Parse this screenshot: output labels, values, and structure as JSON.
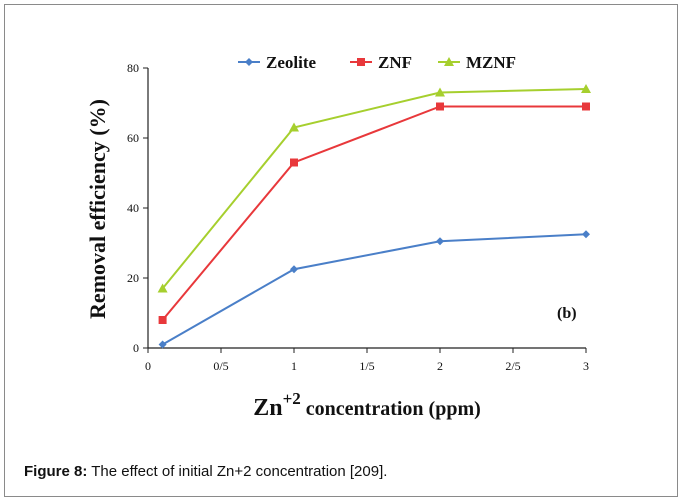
{
  "caption": {
    "label": "Figure 8:",
    "text": "The effect of initial Zn+2 concentration [209]."
  },
  "chart_data": {
    "type": "line",
    "title": "",
    "xlabel_main": "Zn",
    "xlabel_sup": "+2",
    "xlabel_rest": " concentration (ppm)",
    "ylabel": "Removal efficiency (%)",
    "xlim": [
      0,
      3
    ],
    "ylim": [
      0,
      80
    ],
    "x_ticks": [
      {
        "v": 0,
        "label": "0"
      },
      {
        "v": 0.5,
        "label": "0/5"
      },
      {
        "v": 1,
        "label": "1"
      },
      {
        "v": 1.5,
        "label": "1/5"
      },
      {
        "v": 2,
        "label": "2"
      },
      {
        "v": 2.5,
        "label": "2/5"
      },
      {
        "v": 3,
        "label": "3"
      }
    ],
    "y_ticks": [
      {
        "v": 0,
        "label": "0"
      },
      {
        "v": 20,
        "label": "20"
      },
      {
        "v": 40,
        "label": "40"
      },
      {
        "v": 60,
        "label": "60"
      },
      {
        "v": 80,
        "label": "80"
      }
    ],
    "annotation": "(b)",
    "grid": false,
    "legend_position": "top",
    "series": [
      {
        "name": "Zeolite",
        "color": "#4a7fc8",
        "marker": "diamond",
        "x": [
          0.1,
          1,
          2,
          3
        ],
        "y": [
          1,
          22.5,
          30.5,
          32.5
        ]
      },
      {
        "name": "ZNF",
        "color": "#e8383b",
        "marker": "square",
        "x": [
          0.1,
          1,
          2,
          3
        ],
        "y": [
          8,
          53,
          69,
          69
        ]
      },
      {
        "name": "MZNF",
        "color": "#a6cf2e",
        "marker": "triangle",
        "x": [
          0.1,
          1,
          2,
          3
        ],
        "y": [
          17,
          63,
          73,
          74
        ]
      }
    ]
  }
}
